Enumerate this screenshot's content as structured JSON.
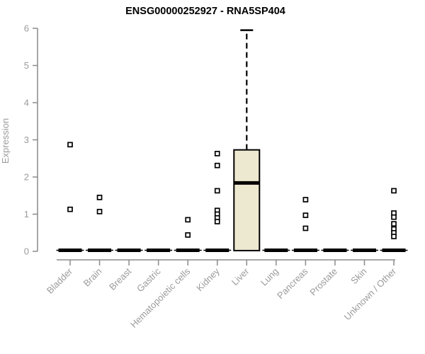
{
  "title": "ENSG00000252927 - RNA5SP404",
  "chart_data": {
    "type": "boxplot",
    "title": "ENSG00000252927 - RNA5SP404",
    "xlabel": "",
    "ylabel": "Expression",
    "ylim": [
      0,
      6
    ],
    "yticks": [
      0,
      1,
      2,
      3,
      4,
      5,
      6
    ],
    "grid": false,
    "legend": null,
    "categories": [
      "Bladder",
      "Brain",
      "Breast",
      "Gastric",
      "Hematopoietic cells",
      "Kidney",
      "Liver",
      "Lung",
      "Pancreas",
      "Prostate",
      "Skin",
      "Unknown / Other"
    ],
    "boxes": [
      {
        "category": "Bladder",
        "q1": 0,
        "median": 0,
        "q3": 0,
        "whisker_low": 0,
        "whisker_high": 0,
        "outliers": [
          2.87,
          1.13
        ]
      },
      {
        "category": "Brain",
        "q1": 0,
        "median": 0,
        "q3": 0,
        "whisker_low": 0,
        "whisker_high": 0,
        "outliers": [
          1.45,
          1.07
        ]
      },
      {
        "category": "Breast",
        "q1": 0,
        "median": 0,
        "q3": 0,
        "whisker_low": 0,
        "whisker_high": 0,
        "outliers": []
      },
      {
        "category": "Gastric",
        "q1": 0,
        "median": 0,
        "q3": 0,
        "whisker_low": 0,
        "whisker_high": 0,
        "outliers": []
      },
      {
        "category": "Hematopoietic cells",
        "q1": 0,
        "median": 0,
        "q3": 0,
        "whisker_low": 0,
        "whisker_high": 0,
        "outliers": [
          0.85,
          0.44
        ]
      },
      {
        "category": "Kidney",
        "q1": 0,
        "median": 0,
        "q3": 0,
        "whisker_low": 0,
        "whisker_high": 0,
        "outliers": [
          2.63,
          2.31,
          1.63,
          1.1,
          1.0,
          0.9,
          0.8
        ]
      },
      {
        "category": "Liver",
        "q1": 0.02,
        "median": 1.84,
        "q3": 2.73,
        "whisker_low": 0.02,
        "whisker_high": 5.95,
        "outliers": []
      },
      {
        "category": "Lung",
        "q1": 0,
        "median": 0,
        "q3": 0,
        "whisker_low": 0,
        "whisker_high": 0,
        "outliers": []
      },
      {
        "category": "Pancreas",
        "q1": 0,
        "median": 0,
        "q3": 0,
        "whisker_low": 0,
        "whisker_high": 0,
        "outliers": [
          1.39,
          0.97,
          0.62
        ]
      },
      {
        "category": "Prostate",
        "q1": 0,
        "median": 0,
        "q3": 0,
        "whisker_low": 0,
        "whisker_high": 0,
        "outliers": []
      },
      {
        "category": "Skin",
        "q1": 0,
        "median": 0,
        "q3": 0,
        "whisker_low": 0,
        "whisker_high": 0,
        "outliers": []
      },
      {
        "category": "Unknown / Other",
        "q1": 0,
        "median": 0,
        "q3": 0,
        "whisker_low": 0,
        "whisker_high": 0,
        "outliers": [
          1.63,
          1.03,
          0.92,
          0.74,
          0.6,
          0.5,
          0.4
        ]
      }
    ],
    "colors": {
      "box_fill": "#EDE8D0",
      "box_stroke": "#000000",
      "median": "#000000",
      "outlier_fill": "#ffffff",
      "outlier_stroke": "#000000",
      "axis_line": "#8a8a8a",
      "tick_label": "#9b9b9b",
      "title": "#000000",
      "background": "#ffffff"
    }
  }
}
